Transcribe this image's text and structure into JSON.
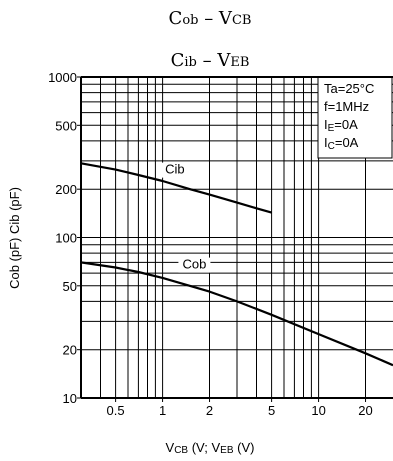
{
  "chart_data": {
    "type": "line",
    "title_lines": [
      "Cob – VCB",
      "Cib – VEB"
    ],
    "title_parts": [
      [
        {
          "t": "C",
          "s": 18
        },
        {
          "t": "ob",
          "s": 13
        },
        {
          "t": " – V",
          "s": 18
        },
        {
          "t": "CB",
          "s": 13
        }
      ],
      [
        {
          "t": "C",
          "s": 18
        },
        {
          "t": "ib",
          "s": 13
        },
        {
          "t": " – V",
          "s": 18
        },
        {
          "t": "EB",
          "s": 13
        }
      ]
    ],
    "ylabel": "Cob (pF)  Cib (pF)",
    "xlabel": "VCB (V)  VEB (V)",
    "xlabel_parts": [
      {
        "t": "V",
        "s": 13
      },
      {
        "t": "CB",
        "s": 10
      },
      {
        "t": " (V",
        "s": 13
      },
      {
        "t": ";",
        "s": 13
      },
      {
        "t": "  V",
        "s": 13
      },
      {
        "t": "EB",
        "s": 10
      },
      {
        "t": " (V)",
        "s": 13
      }
    ],
    "x_scale": "log",
    "y_scale": "log",
    "xlim": [
      0.3,
      30
    ],
    "ylim": [
      10,
      1000
    ],
    "x_ticks": [
      0.5,
      1,
      2,
      5,
      10,
      20
    ],
    "x_tick_labels": [
      "0.5",
      "1",
      "2",
      "5",
      "10",
      "20"
    ],
    "y_ticks": [
      10,
      20,
      50,
      100,
      200,
      500,
      1000
    ],
    "y_tick_labels": [
      "10",
      "20",
      "50",
      "100",
      "200",
      "500",
      "1000"
    ],
    "x_grid": [
      0.4,
      0.5,
      0.6,
      0.7,
      0.8,
      0.9,
      1,
      2,
      3,
      4,
      5,
      6,
      7,
      8,
      9,
      10,
      20
    ],
    "y_grid": [
      20,
      30,
      40,
      50,
      60,
      70,
      80,
      90,
      100,
      200,
      300,
      400,
      500,
      600,
      700,
      800,
      900
    ],
    "grid": true,
    "legend_box": {
      "position": "top-right",
      "lines": [
        [
          {
            "t": "Ta=25°C",
            "sub": false
          }
        ],
        [
          {
            "t": "f=1MHz",
            "sub": false
          }
        ],
        [
          {
            "t": "I",
            "sub": false
          },
          {
            "t": "E",
            "sub": true
          },
          {
            "t": "=0A",
            "sub": false
          }
        ],
        [
          {
            "t": "I",
            "sub": false
          },
          {
            "t": "C",
            "sub": true
          },
          {
            "t": "=0A",
            "sub": false
          }
        ]
      ]
    },
    "series": [
      {
        "name": "Cib",
        "x": [
          0.3,
          0.5,
          0.7,
          1,
          1.5,
          2,
          3,
          4,
          5
        ],
        "y": [
          290,
          265,
          245,
          225,
          200,
          185,
          165,
          152,
          143
        ],
        "label_at": [
          1.2,
          250
        ]
      },
      {
        "name": "Cob",
        "x": [
          0.3,
          0.5,
          0.7,
          1,
          2,
          3,
          5,
          10,
          20,
          30
        ],
        "y": [
          70,
          65,
          61,
          56,
          46,
          40,
          33,
          25,
          19,
          16
        ],
        "label_at": [
          1.6,
          64
        ]
      }
    ]
  }
}
